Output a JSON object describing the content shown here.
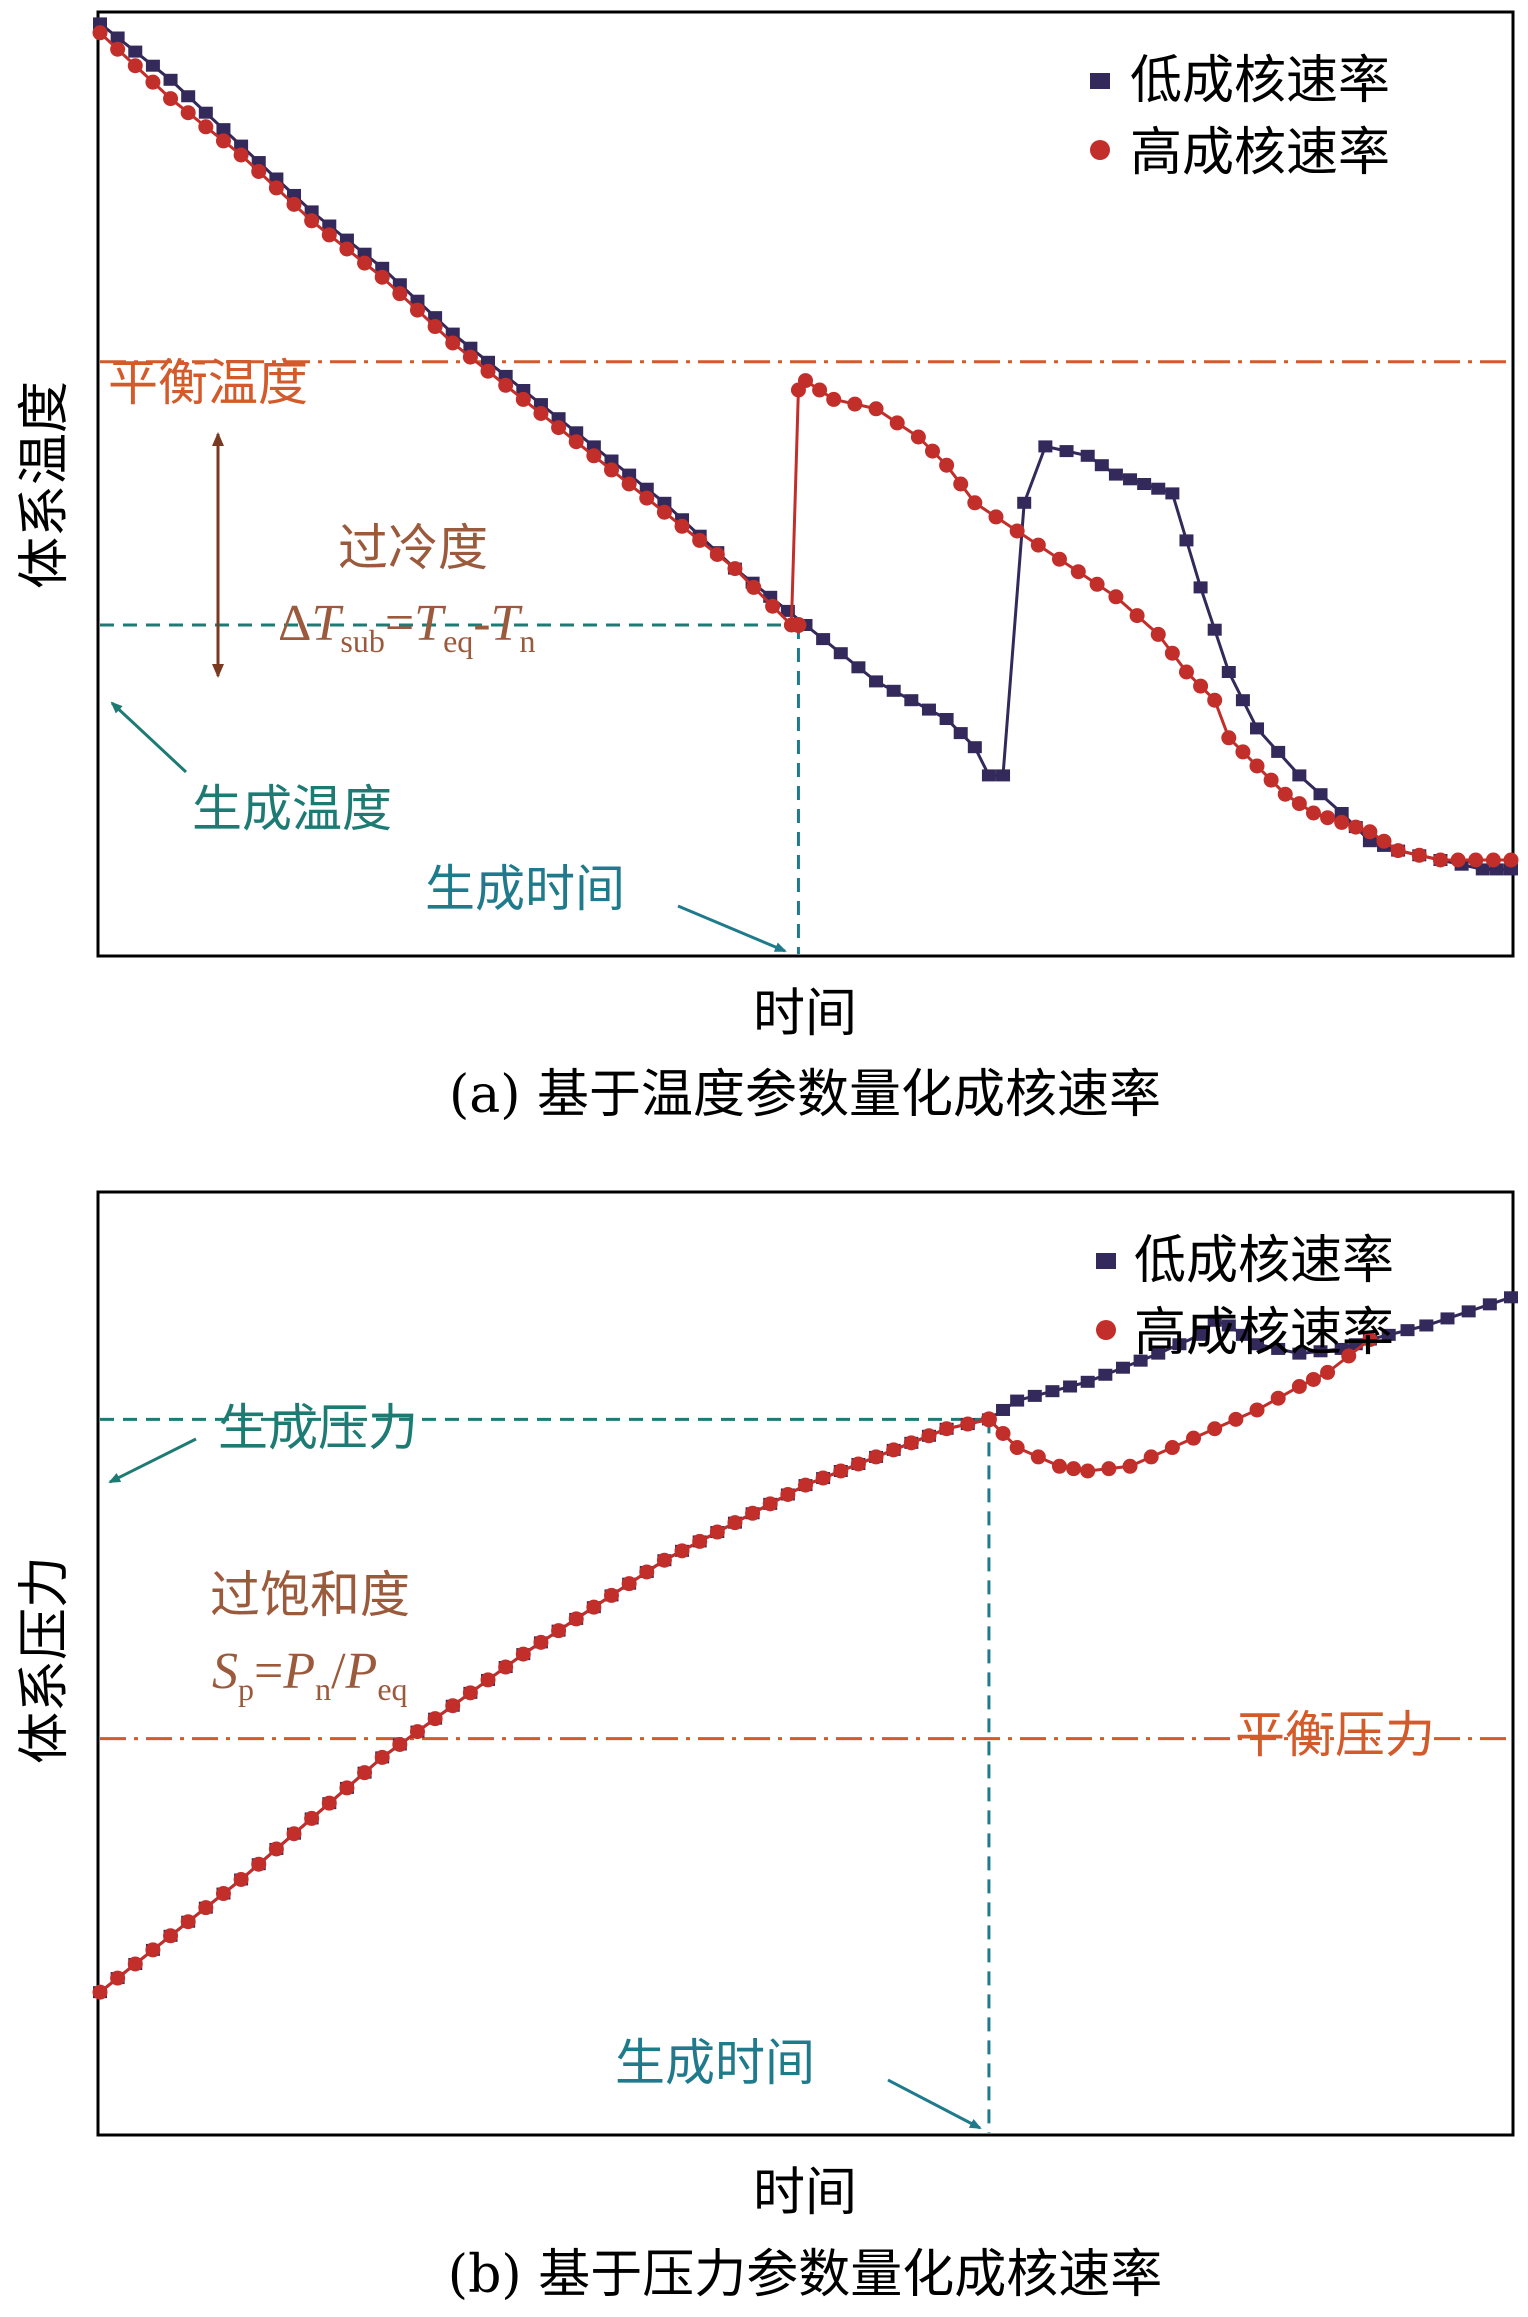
{
  "colors": {
    "low": "#33295a",
    "high": "#c22e2a",
    "eq_line": "#d35a2a",
    "teal": "#1e7b74",
    "blue_teal": "#1f7a8c",
    "brown": "#9b5a3c",
    "arrow_brown": "#7a3a22",
    "axis": "#000000"
  },
  "chart_data": [
    {
      "type": "line",
      "panel": "a",
      "caption": "(a) 基于温度参数量化成核速率",
      "xlabel": "时间",
      "ylabel": "体系温度",
      "xlim": [
        0,
        100
      ],
      "ylim": [
        0,
        100
      ],
      "legend": {
        "placement": "top-right",
        "entries": [
          "低成核速率",
          "高成核速率"
        ]
      },
      "series": [
        {
          "name": "低成核速率",
          "marker": "square",
          "points": [
            [
              0,
              99
            ],
            [
              5,
              93
            ],
            [
              10,
              86
            ],
            [
              15,
              79
            ],
            [
              20,
              73
            ],
            [
              25,
              66
            ],
            [
              30,
              60
            ],
            [
              35,
              54
            ],
            [
              40,
              48
            ],
            [
              45,
              41
            ],
            [
              50,
              35
            ],
            [
              55,
              29
            ],
            [
              60,
              25
            ],
            [
              62,
              22
            ],
            [
              63,
              19
            ],
            [
              64,
              19
            ],
            [
              65.5,
              48
            ],
            [
              67,
              54
            ],
            [
              70,
              53
            ],
            [
              72,
              51
            ],
            [
              74,
              50
            ],
            [
              76,
              49
            ],
            [
              77,
              44
            ],
            [
              78,
              39
            ],
            [
              80,
              30
            ],
            [
              82,
              24
            ],
            [
              85,
              19
            ],
            [
              88,
              15
            ],
            [
              90,
              12
            ],
            [
              92,
              11
            ],
            [
              95,
              10
            ],
            [
              98,
              9
            ],
            [
              100,
              9
            ]
          ]
        },
        {
          "name": "高成核速率",
          "marker": "circle",
          "points": [
            [
              0,
              98
            ],
            [
              5,
              91
            ],
            [
              10,
              85
            ],
            [
              15,
              78
            ],
            [
              20,
              72
            ],
            [
              25,
              65
            ],
            [
              30,
              59
            ],
            [
              35,
              53
            ],
            [
              40,
              47
            ],
            [
              45,
              41
            ],
            [
              49,
              35
            ],
            [
              49.5,
              60
            ],
            [
              50,
              61
            ],
            [
              52,
              59
            ],
            [
              55,
              58
            ],
            [
              58,
              55
            ],
            [
              60,
              52
            ],
            [
              62,
              48
            ],
            [
              65,
              45
            ],
            [
              68,
              42
            ],
            [
              72,
              38
            ],
            [
              75,
              34
            ],
            [
              77,
              30
            ],
            [
              79,
              27
            ],
            [
              80,
              23
            ],
            [
              82,
              20
            ],
            [
              84,
              17
            ],
            [
              86,
              15
            ],
            [
              88,
              14
            ],
            [
              90,
              13
            ],
            [
              92,
              11
            ],
            [
              95,
              10
            ],
            [
              100,
              10
            ]
          ]
        }
      ],
      "reference_lines": [
        {
          "name": "平衡温度",
          "axis": "y",
          "value": 63,
          "style": "dash-dot"
        },
        {
          "name": "生成温度",
          "axis": "y",
          "value": 35,
          "style": "dashed"
        },
        {
          "name": "生成时间",
          "axis": "x",
          "value": 49.5,
          "style": "dashed"
        }
      ],
      "annotations": {
        "eq_temp": "平衡温度",
        "subcool_title": "过冷度",
        "subcool_formula": {
          "delta": "Δ",
          "T": "T",
          "sub": "sub",
          "eq_sign": "=",
          "T2": "T",
          "eq": "eq",
          "minus": "-",
          "T3": "T",
          "n": "n"
        },
        "nuc_temp": "生成温度",
        "nuc_time": "生成时间"
      }
    },
    {
      "type": "line",
      "panel": "b",
      "caption": "(b) 基于压力参数量化成核速率",
      "xlabel": "时间",
      "ylabel": "体系压力",
      "xlim": [
        0,
        100
      ],
      "ylim": [
        0,
        100
      ],
      "legend": {
        "placement": "top-right",
        "entries": [
          "低成核速率",
          "高成核速率"
        ]
      },
      "series": [
        {
          "name": "低成核速率",
          "marker": "square",
          "points": [
            [
              0,
              15
            ],
            [
              10,
              27
            ],
            [
              20,
              40
            ],
            [
              30,
              51
            ],
            [
              40,
              61
            ],
            [
              50,
              69
            ],
            [
              60,
              75
            ],
            [
              63,
              76
            ],
            [
              65,
              78
            ],
            [
              70,
              80
            ],
            [
              75,
              83
            ],
            [
              78,
              85
            ],
            [
              79,
              86.5
            ],
            [
              80,
              86
            ],
            [
              82,
              84
            ],
            [
              85,
              83
            ],
            [
              88,
              83.5
            ],
            [
              90,
              84.5
            ],
            [
              94,
              86
            ],
            [
              97,
              87.5
            ],
            [
              100,
              89
            ]
          ]
        },
        {
          "name": "高成核速率",
          "marker": "circle",
          "points": [
            [
              0,
              15
            ],
            [
              10,
              27
            ],
            [
              20,
              40
            ],
            [
              30,
              51
            ],
            [
              40,
              61
            ],
            [
              50,
              69
            ],
            [
              60,
              75
            ],
            [
              63,
              76
            ],
            [
              65,
              73
            ],
            [
              68,
              71
            ],
            [
              70,
              70.5
            ],
            [
              73,
              71
            ],
            [
              76,
              73
            ],
            [
              79,
              75
            ],
            [
              82,
              77
            ],
            [
              85,
              79.5
            ],
            [
              87,
              81
            ],
            [
              90,
              84.5
            ]
          ]
        }
      ],
      "reference_lines": [
        {
          "name": "平衡压力",
          "axis": "y",
          "value": 42,
          "style": "dash-dot"
        },
        {
          "name": "生成压力",
          "axis": "y",
          "value": 76,
          "style": "dashed"
        },
        {
          "name": "生成时间",
          "axis": "x",
          "value": 63,
          "style": "dashed"
        }
      ],
      "annotations": {
        "nuc_pressure": "生成压力",
        "supersat_title": "过饱和度",
        "supersat_formula": {
          "S": "S",
          "p": "p",
          "eq_sign": "=",
          "P": "P",
          "n": "n",
          "slash": "/",
          "P2": "P",
          "eq": "eq"
        },
        "eq_pressure": "平衡压力",
        "nuc_time": "生成时间"
      }
    }
  ]
}
